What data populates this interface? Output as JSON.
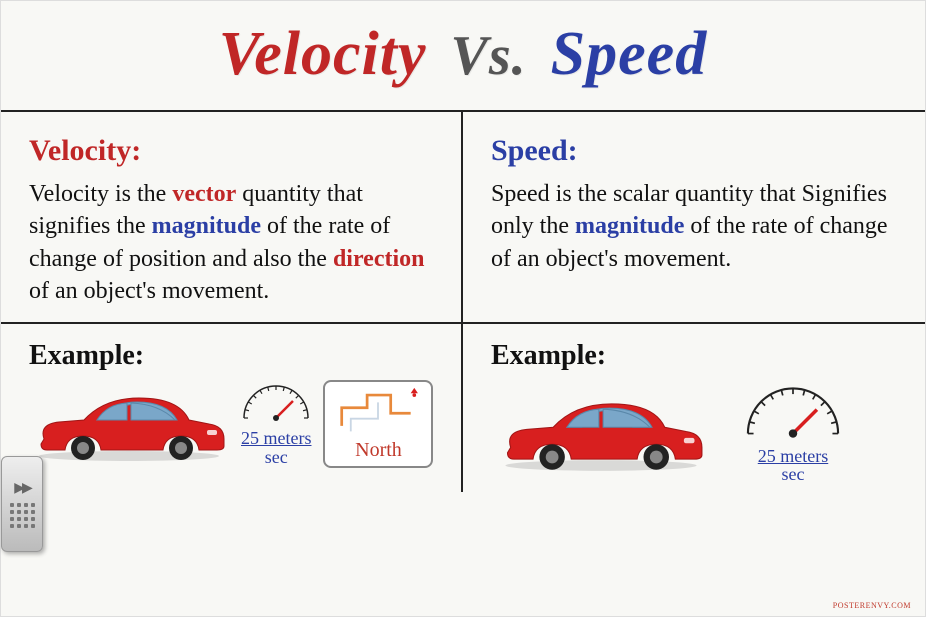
{
  "colors": {
    "red": "#c02727",
    "blue": "#2b3fa5",
    "gray": "#555555",
    "text": "#111111",
    "car_body": "#d81f1f",
    "car_shadow": "#a11515",
    "car_window": "#7aa7c9",
    "wheel": "#222222",
    "rim": "#888888",
    "nav_route": "#e8893b",
    "nav_marker": "#d81f1f"
  },
  "title": {
    "left": "Velocity",
    "mid": "Vs.",
    "right": "Speed"
  },
  "left": {
    "head": "Velocity:",
    "body_parts": [
      {
        "t": "Velocity is the ",
        "c": "text"
      },
      {
        "t": "vector",
        "c": "red",
        "b": true
      },
      {
        "t": " quantity that signifies the ",
        "c": "text"
      },
      {
        "t": "magnitude",
        "c": "blue",
        "b": true
      },
      {
        "t": " of the rate of change of position and also the ",
        "c": "text"
      },
      {
        "t": "direction",
        "c": "red",
        "b": true
      },
      {
        "t": " of an object's movement.",
        "c": "text"
      }
    ]
  },
  "right": {
    "head": "Speed:",
    "body_parts": [
      {
        "t": "Speed is the scalar quantity that Signifies only the ",
        "c": "text"
      },
      {
        "t": "magnitude",
        "c": "blue",
        "b": true
      },
      {
        "t": " of the rate of change of an object's movement.",
        "c": "text"
      }
    ]
  },
  "example_label": "Example:",
  "gauge": {
    "top": "25 meters",
    "bot": "sec"
  },
  "nav_label": "North",
  "watermark": "POSTERENVY.COM"
}
